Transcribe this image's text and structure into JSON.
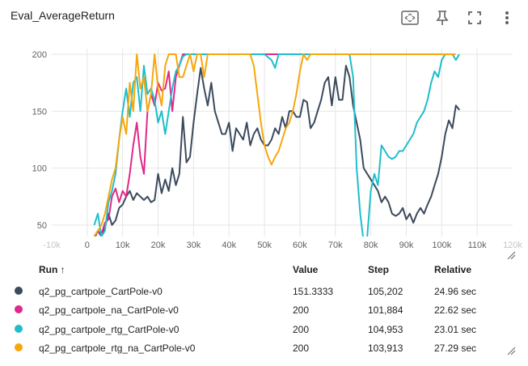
{
  "card": {
    "title": "Eval_AverageReturn",
    "toolbar": [
      {
        "name": "fit-domain-icon"
      },
      {
        "name": "pin-icon"
      },
      {
        "name": "fullscreen-icon"
      },
      {
        "name": "more-vert-icon"
      }
    ]
  },
  "chart_data": {
    "type": "line",
    "title": "Eval_AverageReturn",
    "x_ticks": [
      "-10k",
      "0",
      "10k",
      "20k",
      "30k",
      "40k",
      "50k",
      "60k",
      "70k",
      "80k",
      "90k",
      "100k",
      "110k",
      "120k"
    ],
    "y_ticks": [
      "50",
      "100",
      "150",
      "200"
    ],
    "xlim": [
      -10000,
      120000
    ],
    "ylim": [
      40,
      205
    ],
    "grid": true,
    "series": [
      {
        "name": "q2_pg_cartpole_CartPole-v0",
        "color": "#3b4a5c",
        "x": [
          2000,
          3000,
          4000,
          5000,
          6000,
          7000,
          8000,
          9000,
          10000,
          11000,
          12000,
          13000,
          14000,
          15000,
          16000,
          17000,
          18000,
          19000,
          20000,
          21000,
          22000,
          23000,
          24000,
          25000,
          26000,
          27000,
          28000,
          29000,
          30000,
          31000,
          32000,
          33000,
          34000,
          35000,
          36000,
          37000,
          38000,
          39000,
          40000,
          41000,
          42000,
          43000,
          44000,
          45000,
          46000,
          47000,
          48000,
          49000,
          50000,
          51000,
          52000,
          53000,
          54000,
          55000,
          56000,
          57000,
          58000,
          59000,
          60000,
          61000,
          62000,
          63000,
          64000,
          65000,
          66000,
          67000,
          68000,
          69000,
          70000,
          71000,
          72000,
          73000,
          74000,
          75000,
          76000,
          77000,
          78000,
          79000,
          80000,
          81000,
          82000,
          83000,
          84000,
          85000,
          86000,
          87000,
          88000,
          89000,
          90000,
          91000,
          92000,
          93000,
          94000,
          95000,
          96000,
          97000,
          98000,
          99000,
          100000,
          101000,
          102000,
          103000,
          104000,
          105000
        ],
        "y": [
          38,
          45,
          40,
          48,
          60,
          50,
          54,
          65,
          68,
          75,
          80,
          72,
          78,
          75,
          72,
          75,
          70,
          72,
          95,
          78,
          90,
          80,
          100,
          85,
          95,
          145,
          105,
          110,
          140,
          165,
          188,
          170,
          155,
          175,
          150,
          140,
          130,
          130,
          140,
          115,
          135,
          130,
          125,
          140,
          120,
          130,
          135,
          125,
          120,
          120,
          125,
          135,
          130,
          145,
          135,
          150,
          150,
          145,
          145,
          160,
          158,
          135,
          140,
          150,
          160,
          175,
          180,
          155,
          180,
          160,
          160,
          190,
          180,
          155,
          140,
          125,
          100,
          95,
          90,
          85,
          80,
          70,
          75,
          70,
          60,
          58,
          60,
          65,
          55,
          60,
          52,
          60,
          65,
          60,
          68,
          75,
          85,
          95,
          110,
          130,
          142,
          135,
          155,
          151
        ]
      },
      {
        "name": "q2_pg_cartpole_na_CartPole-v0",
        "color": "#e0298a",
        "x": [
          2000,
          3000,
          4000,
          5000,
          6000,
          7000,
          8000,
          9000,
          10000,
          11000,
          12000,
          13000,
          14000,
          15000,
          16000,
          17000,
          18000,
          19000,
          20000,
          21000,
          22000,
          23000,
          24000,
          25000,
          26000,
          27000,
          28000,
          29000,
          30000,
          31000,
          32000,
          34000,
          36000,
          38000,
          40000,
          42000,
          44000,
          46000,
          48000,
          50000,
          52000,
          54000,
          56000,
          58000,
          60000,
          70000,
          80000,
          90000,
          100000,
          101884
        ],
        "y": [
          40,
          45,
          42,
          52,
          55,
          75,
          82,
          70,
          80,
          75,
          95,
          120,
          140,
          110,
          95,
          150,
          165,
          155,
          175,
          168,
          170,
          185,
          150,
          180,
          190,
          200,
          200,
          200,
          200,
          200,
          200,
          200,
          200,
          200,
          200,
          200,
          200,
          200,
          200,
          200,
          200,
          200,
          200,
          200,
          200,
          200,
          200,
          200,
          200,
          200
        ]
      },
      {
        "name": "q2_pg_cartpole_rtg_CartPole-v0",
        "color": "#1fbecb",
        "x": [
          2000,
          3000,
          4000,
          5000,
          6000,
          7000,
          8000,
          9000,
          10000,
          11000,
          12000,
          13000,
          14000,
          15000,
          16000,
          17000,
          18000,
          19000,
          20000,
          21000,
          22000,
          23000,
          24000,
          25000,
          26000,
          27000,
          28000,
          30000,
          33000,
          36000,
          40000,
          44000,
          46000,
          50000,
          52000,
          53000,
          54000,
          58000,
          62000,
          66000,
          70000,
          72000,
          74000,
          75000,
          76000,
          77000,
          78000,
          79000,
          80000,
          81000,
          82000,
          83000,
          84000,
          85000,
          86000,
          87000,
          88000,
          89000,
          90000,
          91000,
          92000,
          93000,
          94000,
          95000,
          96000,
          97000,
          98000,
          99000,
          100000,
          101000,
          102000,
          103000,
          104000,
          104953
        ],
        "y": [
          50,
          60,
          40,
          45,
          70,
          80,
          95,
          125,
          150,
          170,
          145,
          175,
          180,
          150,
          190,
          165,
          170,
          160,
          140,
          150,
          130,
          150,
          170,
          185,
          190,
          198,
          200,
          200,
          200,
          200,
          200,
          200,
          200,
          200,
          195,
          188,
          200,
          200,
          200,
          200,
          200,
          200,
          200,
          180,
          100,
          60,
          35,
          40,
          80,
          95,
          85,
          120,
          115,
          110,
          108,
          110,
          115,
          115,
          120,
          125,
          130,
          140,
          145,
          150,
          160,
          175,
          185,
          180,
          195,
          200,
          200,
          200,
          195,
          200
        ]
      },
      {
        "name": "q2_pg_cartpole_rtg_na_CartPole-v0",
        "color": "#f5a70c",
        "x": [
          2000,
          3000,
          4000,
          5000,
          6000,
          7000,
          8000,
          9000,
          10000,
          11000,
          12000,
          13000,
          14000,
          15000,
          16000,
          17000,
          18000,
          19000,
          20000,
          21000,
          22000,
          23000,
          24000,
          25000,
          26000,
          27000,
          28000,
          29000,
          30000,
          31000,
          32000,
          33000,
          34000,
          35000,
          38000,
          40000,
          42000,
          44000,
          46000,
          47000,
          48000,
          49000,
          50000,
          51000,
          52000,
          53000,
          54000,
          55000,
          56000,
          57000,
          58000,
          59000,
          60000,
          61000,
          62000,
          63000,
          64000,
          66000,
          70000,
          80000,
          90000,
          100000,
          103913
        ],
        "y": [
          40,
          45,
          50,
          60,
          75,
          90,
          100,
          125,
          145,
          130,
          175,
          150,
          200,
          170,
          180,
          150,
          165,
          200,
          170,
          155,
          190,
          200,
          200,
          200,
          180,
          180,
          190,
          200,
          185,
          200,
          200,
          180,
          200,
          200,
          200,
          200,
          200,
          200,
          200,
          190,
          165,
          140,
          120,
          110,
          103,
          110,
          115,
          125,
          135,
          140,
          150,
          165,
          185,
          200,
          195,
          200,
          200,
          200,
          200,
          200,
          200,
          200,
          200
        ]
      }
    ]
  },
  "table": {
    "headers": {
      "run": "Run ↑",
      "value": "Value",
      "step": "Step",
      "relative": "Relative"
    },
    "rows": [
      {
        "run": "q2_pg_cartpole_CartPole-v0",
        "value": "151.3333",
        "step": "105,202",
        "relative": "24.96 sec"
      },
      {
        "run": "q2_pg_cartpole_na_CartPole-v0",
        "value": "200",
        "step": "101,884",
        "relative": "22.62 sec"
      },
      {
        "run": "q2_pg_cartpole_rtg_CartPole-v0",
        "value": "200",
        "step": "104,953",
        "relative": "23.01 sec"
      },
      {
        "run": "q2_pg_cartpole_rtg_na_CartPole-v0",
        "value": "200",
        "step": "103,913",
        "relative": "27.29 sec"
      }
    ]
  }
}
